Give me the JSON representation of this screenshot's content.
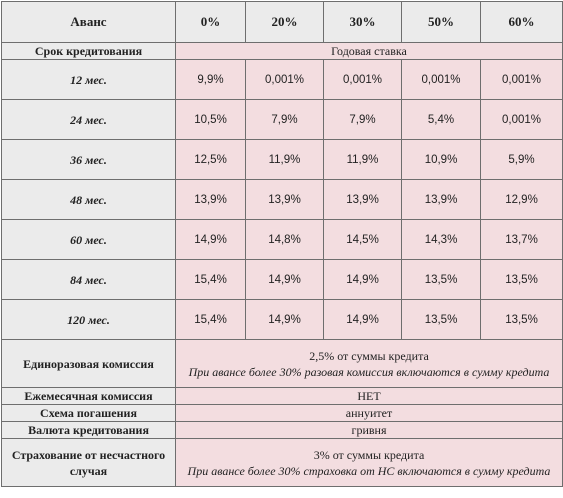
{
  "table": {
    "header": [
      "Аванс",
      "0%",
      "20%",
      "30%",
      "50%",
      "60%"
    ],
    "rate_row": {
      "label": "Срок кредитования",
      "value": "Годовая ставка"
    },
    "rows": [
      [
        "12 мес.",
        "9,9%",
        "0,001%",
        "0,001%",
        "0,001%",
        "0,001%"
      ],
      [
        "24 мес.",
        "10,5%",
        "7,9%",
        "7,9%",
        "5,4%",
        "0,001%"
      ],
      [
        "36 мес.",
        "12,5%",
        "11,9%",
        "11,9%",
        "10,9%",
        "5,9%"
      ],
      [
        "48 мес.",
        "13,9%",
        "13,9%",
        "13,9%",
        "13,9%",
        "12,9%"
      ],
      [
        "60 мес.",
        "14,9%",
        "14,8%",
        "14,5%",
        "14,3%",
        "13,7%"
      ],
      [
        "84 мес.",
        "15,4%",
        "14,9%",
        "14,9%",
        "13,5%",
        "13,5%"
      ],
      [
        "120 мес.",
        "15,4%",
        "14,9%",
        "14,9%",
        "13,5%",
        "13,5%"
      ]
    ],
    "conditions": [
      {
        "label": "Единоразовая комиссия",
        "value": "2,5% от суммы кредита",
        "note": "При авансе более 30% разовая комиссия включаются в сумму кредита"
      },
      {
        "label": "Ежемесячная комиссия",
        "value": "НЕТ"
      },
      {
        "label": "Схема погашения",
        "value": "аннуитет"
      },
      {
        "label": "Валюта кредитования",
        "value": "гривня"
      },
      {
        "label": "Страхование от несчастного случая",
        "value": "3% от суммы кредита",
        "note": "При авансе более 30% страховка от НС включаются в сумму кредита"
      }
    ]
  }
}
